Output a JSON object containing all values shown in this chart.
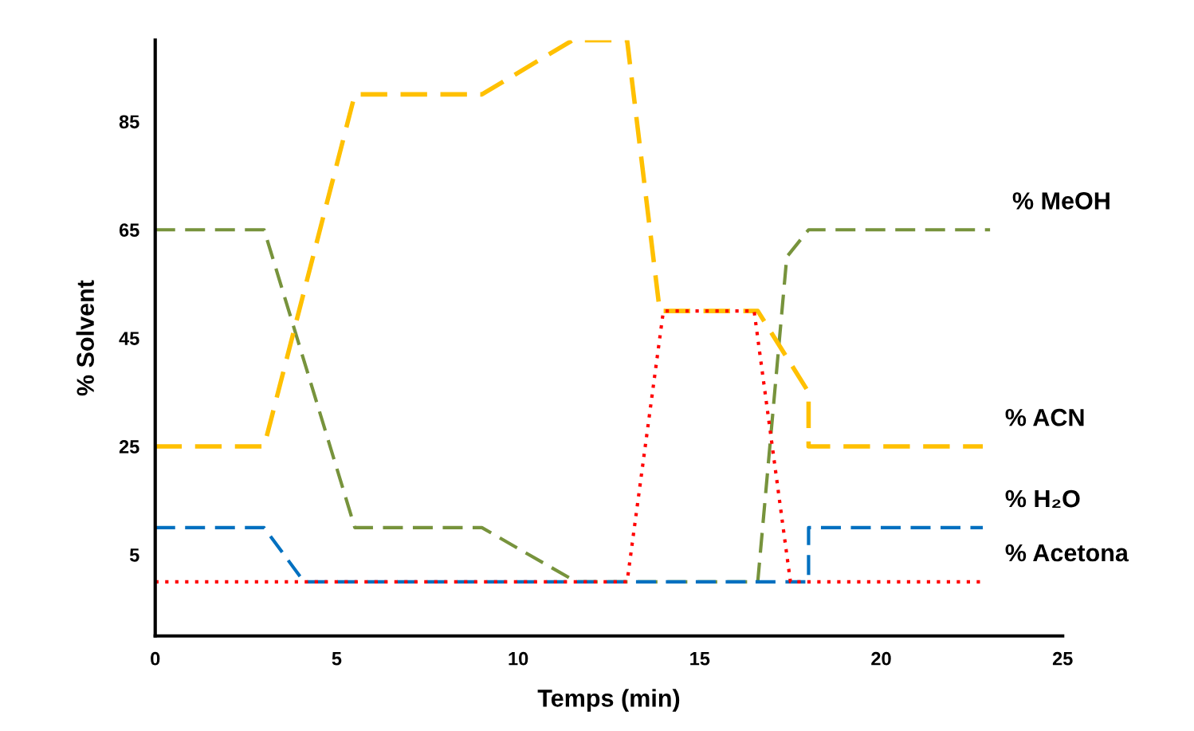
{
  "chart_data": {
    "type": "line",
    "xlabel": "Temps (min)",
    "ylabel": "% Solvent",
    "xlim": [
      0,
      25
    ],
    "xticks": [
      0,
      5,
      10,
      15,
      20,
      25
    ],
    "ylim": [
      -10,
      100
    ],
    "yticks": [
      5,
      25,
      45,
      65,
      85
    ],
    "grid": false,
    "legend": false,
    "marker": "none",
    "series": [
      {
        "name": "% MeOH",
        "color": "#77933c",
        "line_style": "dashed",
        "x": [
          0,
          3,
          5.5,
          9,
          11.6,
          16.6,
          17.4,
          18,
          23
        ],
        "values": [
          65,
          65,
          10,
          10,
          0,
          0,
          60,
          65,
          65
        ]
      },
      {
        "name": "% ACN",
        "color": "#ffc000",
        "line_style": "dashed",
        "x": [
          0,
          3,
          5.5,
          9,
          11.5,
          13,
          13.9,
          16.6,
          18,
          18,
          22.8
        ],
        "values": [
          25,
          25,
          90,
          90,
          100,
          100,
          50,
          50,
          35,
          25,
          25
        ]
      },
      {
        "name": "% H₂O",
        "color": "#0070c0",
        "line_style": "dashed",
        "x": [
          0,
          3,
          4.1,
          18,
          18,
          22.8
        ],
        "values": [
          10,
          10,
          0,
          0,
          10,
          10
        ]
      },
      {
        "name": "% Acetona",
        "color": "#ff0000",
        "line_style": "dotted",
        "x": [
          0,
          13,
          14,
          16.5,
          17.5,
          22.8
        ],
        "values": [
          0,
          0,
          50,
          50,
          0,
          0
        ]
      }
    ]
  }
}
